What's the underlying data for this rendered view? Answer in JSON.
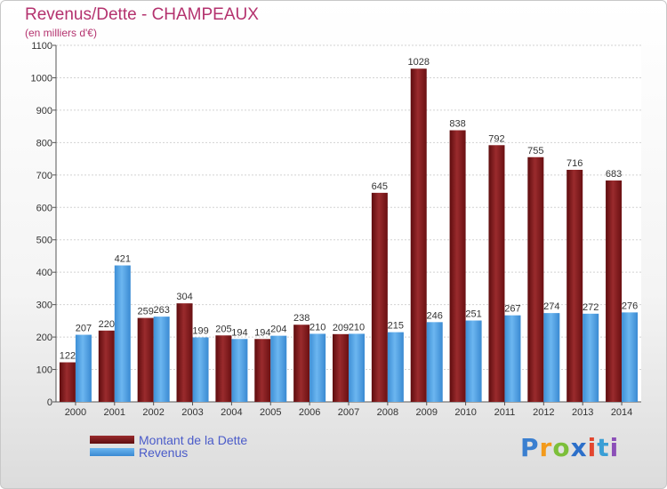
{
  "title": "Revenus/Dette - CHAMPEAUX",
  "subtitle": "(en milliers d'€)",
  "logo": {
    "text": "Proxiti",
    "letters": [
      "P",
      "r",
      "o",
      "x",
      "i",
      "t",
      "i"
    ]
  },
  "colors": {
    "debt": "#7a1416",
    "revenue": "#4a9fe2",
    "axis_text": "#333333",
    "title": "#b4326e",
    "legend_text": "#4a5bc9"
  },
  "chart_data": {
    "type": "bar",
    "title": "Revenus/Dette - CHAMPEAUX",
    "ylabel": "",
    "xlabel": "",
    "ylim": [
      0,
      1100
    ],
    "yticks": [
      0,
      100,
      200,
      300,
      400,
      500,
      600,
      700,
      800,
      900,
      1000,
      1100
    ],
    "grid": true,
    "legend_position": "bottom-left",
    "categories": [
      "2000",
      "2001",
      "2002",
      "2003",
      "2004",
      "2005",
      "2006",
      "2007",
      "2008",
      "2009",
      "2010",
      "2011",
      "2012",
      "2013",
      "2014"
    ],
    "series": [
      {
        "name": "Montant de la Dette",
        "color": "#7a1416",
        "values": [
          122,
          220,
          259,
          304,
          205,
          194,
          238,
          209,
          645,
          1028,
          838,
          792,
          755,
          716,
          683
        ]
      },
      {
        "name": "Revenus",
        "color": "#4a9fe2",
        "values": [
          207,
          421,
          263,
          199,
          194,
          204,
          210,
          210,
          215,
          246,
          251,
          267,
          274,
          272,
          276
        ]
      }
    ]
  }
}
